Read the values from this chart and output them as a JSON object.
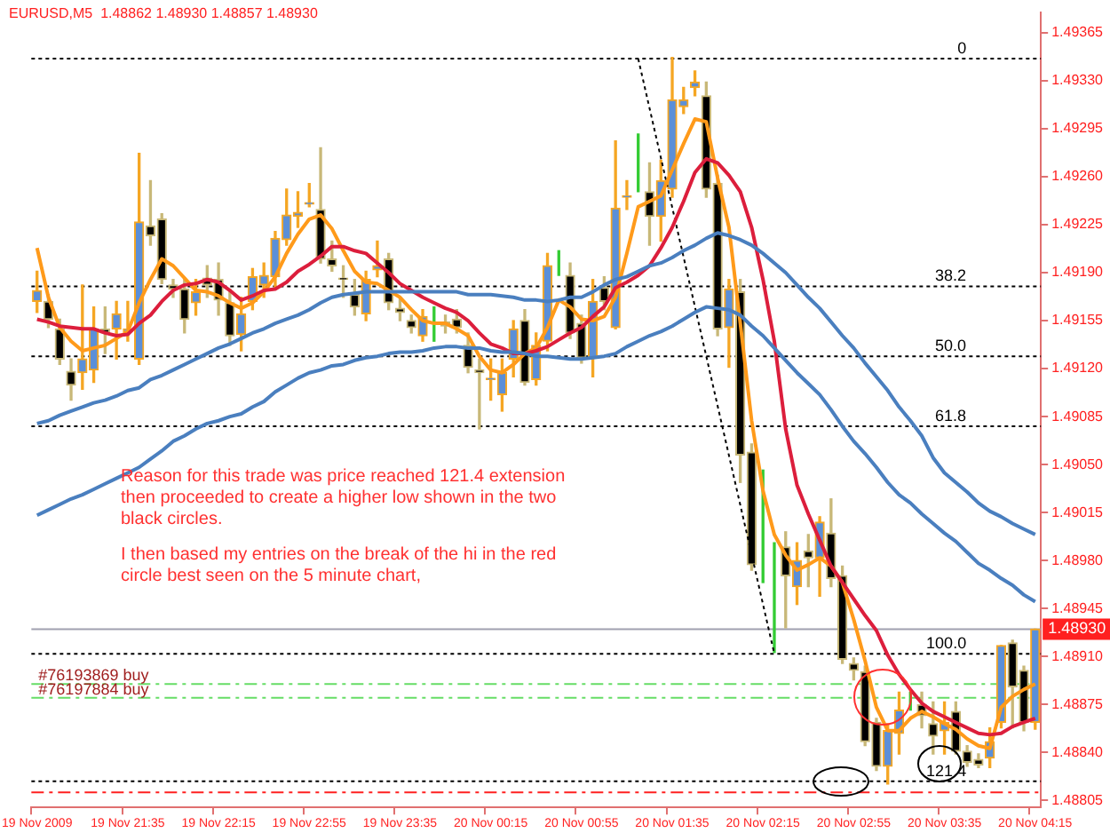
{
  "chart_data": {
    "type": "candlestick",
    "title": "EURUSD,M5  1.48862 1.48930 1.48857 1.48930",
    "categories": [
      "19 Nov 2009",
      null,
      null,
      null,
      null,
      null,
      null,
      null,
      "19 Nov 21:35",
      null,
      null,
      null,
      null,
      null,
      null,
      null,
      "19 Nov 22:15",
      null,
      null,
      null,
      null,
      null,
      null,
      null,
      "19 Nov 22:55",
      null,
      null,
      null,
      null,
      null,
      null,
      null,
      "19 Nov 23:35",
      null,
      null,
      null,
      null,
      null,
      null,
      null,
      "20 Nov 00:15",
      null,
      null,
      null,
      null,
      null,
      null,
      null,
      "20 Nov 00:55",
      null,
      null,
      null,
      null,
      null,
      null,
      null,
      "20 Nov 01:35",
      null,
      null,
      null,
      null,
      null,
      null,
      null,
      "20 Nov 02:15",
      null,
      null,
      null,
      null,
      null,
      null,
      null,
      "20 Nov 02:55",
      null,
      null,
      null,
      null,
      null,
      null,
      null,
      "20 Nov 03:35",
      null,
      null,
      null,
      null,
      null,
      null,
      null,
      "20 Nov 04:15"
    ],
    "ohlc": [
      [
        1.49169,
        1.49191,
        1.49161,
        1.49177
      ],
      [
        1.49169,
        1.49174,
        1.4915,
        1.49156
      ],
      [
        1.49149,
        1.49156,
        1.49123,
        1.49127
      ],
      [
        1.49118,
        1.49127,
        1.49097,
        1.49108
      ],
      [
        1.49117,
        1.49181,
        1.49105,
        1.49127
      ],
      [
        1.49119,
        1.49165,
        1.4911,
        1.49149
      ],
      [
        1.49149,
        1.49165,
        1.49131,
        1.49146
      ],
      [
        1.49149,
        1.49169,
        1.49127,
        1.4916
      ],
      [
        1.49147,
        1.49169,
        1.4914,
        1.49149
      ],
      [
        1.49127,
        1.49277,
        1.49123,
        1.49227
      ],
      [
        1.49224,
        1.49257,
        1.4921,
        1.49217
      ],
      [
        1.49229,
        1.49233,
        1.49182,
        1.49185
      ],
      [
        1.49181,
        1.49185,
        1.49172,
        1.49178
      ],
      [
        1.49178,
        1.49185,
        1.49146,
        1.49156
      ],
      [
        1.49168,
        1.49185,
        1.49159,
        1.49176
      ],
      [
        1.49186,
        1.49195,
        1.49172,
        1.49181
      ],
      [
        1.49185,
        1.49197,
        1.49159,
        1.4917
      ],
      [
        1.49168,
        1.49178,
        1.49137,
        1.49144
      ],
      [
        1.49145,
        1.49172,
        1.49133,
        1.4916
      ],
      [
        1.49169,
        1.49193,
        1.49163,
        1.49187
      ],
      [
        1.49181,
        1.49197,
        1.49172,
        1.49188
      ],
      [
        1.49187,
        1.4922,
        1.49178,
        1.49215
      ],
      [
        1.49214,
        1.49251,
        1.4921,
        1.49232
      ],
      [
        1.49231,
        1.49249,
        1.49223,
        1.49234
      ],
      [
        1.4924,
        1.49255,
        1.49238,
        1.49241
      ],
      [
        1.49236,
        1.49281,
        1.49197,
        1.492
      ],
      [
        1.492,
        1.49213,
        1.49191,
        1.49195
      ],
      [
        1.49186,
        1.49195,
        1.49172,
        1.49185
      ],
      [
        1.49174,
        1.49185,
        1.49159,
        1.49165
      ],
      [
        1.4916,
        1.49191,
        1.49155,
        1.49185
      ],
      [
        1.49192,
        1.49213,
        1.49187,
        1.49195
      ],
      [
        1.492,
        1.49204,
        1.49163,
        1.49168
      ],
      [
        1.49164,
        1.49172,
        1.49155,
        1.49161
      ],
      [
        1.49155,
        1.49159,
        1.49146,
        1.4915
      ],
      [
        1.49144,
        1.49163,
        1.4914,
        1.49158
      ],
      [
        1.49155,
        1.49165,
        1.4914,
        1.49155
      ],
      [
        1.49154,
        1.49159,
        1.49146,
        1.49151
      ],
      [
        1.49156,
        1.49163,
        1.49146,
        1.4915
      ],
      [
        1.49137,
        1.49146,
        1.49117,
        1.49121
      ],
      [
        1.49119,
        1.49127,
        1.49076,
        1.49117
      ],
      [
        1.49112,
        1.49127,
        1.49097,
        1.49113
      ],
      [
        1.49101,
        1.49127,
        1.49089,
        1.49117
      ],
      [
        1.49127,
        1.49155,
        1.49114,
        1.49149
      ],
      [
        1.49155,
        1.49163,
        1.49108,
        1.4911
      ],
      [
        1.49112,
        1.49146,
        1.49108,
        1.49137
      ],
      [
        1.4914,
        1.49204,
        1.49133,
        1.49195
      ],
      [
        1.49196,
        1.49206,
        1.49188,
        1.49196
      ],
      [
        1.49188,
        1.49197,
        1.49142,
        1.49146
      ],
      [
        1.49153,
        1.49159,
        1.49124,
        1.49128
      ],
      [
        1.49128,
        1.49185,
        1.49114,
        1.49169
      ],
      [
        1.49179,
        1.49187,
        1.49163,
        1.49169
      ],
      [
        1.4915,
        1.49286,
        1.49149,
        1.49237
      ],
      [
        1.49245,
        1.49257,
        1.49236,
        1.49246
      ],
      [
        1.49249,
        1.49291,
        1.49249,
        1.49249
      ],
      [
        1.49249,
        1.4927,
        1.4921,
        1.49231
      ],
      [
        1.49231,
        1.49272,
        1.49213,
        1.49257
      ],
      [
        1.49251,
        1.49347,
        1.49245,
        1.49316
      ],
      [
        1.49311,
        1.49325,
        1.49306,
        1.49316
      ],
      [
        1.49325,
        1.49337,
        1.49319,
        1.49329
      ],
      [
        1.49319,
        1.49329,
        1.49245,
        1.49251
      ],
      [
        1.49255,
        1.49261,
        1.49144,
        1.49149
      ],
      [
        1.4915,
        1.49185,
        1.49121,
        1.49178
      ],
      [
        1.49176,
        1.49185,
        1.49037,
        1.49057
      ],
      [
        1.49059,
        1.49065,
        1.48973,
        1.48977
      ],
      [
        1.48982,
        1.49046,
        1.48964,
        1.48982
      ],
      [
        1.4899,
        1.48993,
        1.48913,
        1.4899
      ],
      [
        1.4899,
        1.49001,
        1.48931,
        1.48969
      ],
      [
        1.48961,
        1.48993,
        1.48948,
        1.4898
      ],
      [
        1.48987,
        1.48999,
        1.48961,
        1.48982
      ],
      [
        1.48982,
        1.49012,
        1.48954,
        1.49008
      ],
      [
        1.49,
        1.49025,
        1.48961,
        1.48967
      ],
      [
        1.48969,
        1.48976,
        1.48905,
        1.48908
      ],
      [
        1.48905,
        1.48909,
        1.48893,
        1.489
      ],
      [
        1.48899,
        1.48903,
        1.48845,
        1.48848
      ],
      [
        1.48862,
        1.48865,
        1.48827,
        1.4883
      ],
      [
        1.4883,
        1.48861,
        1.48817,
        1.48856
      ],
      [
        1.48854,
        1.48884,
        1.48839,
        1.48871
      ],
      [
        1.48873,
        1.48884,
        1.48871,
        1.48873
      ],
      [
        1.48875,
        1.48884,
        1.48858,
        1.48867
      ],
      [
        1.48861,
        1.48877,
        1.48839,
        1.48852
      ],
      [
        1.48856,
        1.48877,
        1.48839,
        1.48862
      ],
      [
        1.4887,
        1.48877,
        1.48839,
        1.48841
      ],
      [
        1.48841,
        1.48845,
        1.4883,
        1.48833
      ],
      [
        1.48835,
        1.48839,
        1.48829,
        1.48831
      ],
      [
        1.48836,
        1.48858,
        1.48829,
        1.48848
      ],
      [
        1.48862,
        1.48918,
        1.48858,
        1.48918
      ],
      [
        1.4892,
        1.48922,
        1.48858,
        1.48888
      ],
      [
        1.489,
        1.48903,
        1.48856,
        1.48862
      ],
      [
        1.48862,
        1.4893,
        1.48857,
        1.4893
      ]
    ],
    "series": [
      {
        "type": "line",
        "color": "#4a7fbf",
        "values": [
          1.4908,
          1.49082,
          1.49086,
          1.49089,
          1.49092,
          1.49095,
          1.49097,
          1.491,
          1.49104,
          1.49106,
          1.49112,
          1.49115,
          1.49119,
          1.49123,
          1.49127,
          1.49131,
          1.49135,
          1.49138,
          1.49142,
          1.49146,
          1.49149,
          1.49153,
          1.49156,
          1.49159,
          1.49163,
          1.49168,
          1.49172,
          1.49174,
          1.49175,
          1.49176,
          1.49176,
          1.49176,
          1.49176,
          1.49176,
          1.49176,
          1.49176,
          1.49176,
          1.49176,
          1.49174,
          1.49174,
          1.49174,
          1.49173,
          1.49172,
          1.4917,
          1.4917,
          1.49169,
          1.4917,
          1.49172,
          1.49172,
          1.49176,
          1.49181,
          1.49185,
          1.49187,
          1.49191,
          1.49195,
          1.49197,
          1.49201,
          1.49206,
          1.4921,
          1.49215,
          1.49219,
          1.49217,
          1.49214,
          1.4921,
          1.49204,
          1.49197,
          1.4919,
          1.49181,
          1.49172,
          1.49164,
          1.49154,
          1.49144,
          1.49135,
          1.49124,
          1.49114,
          1.49104,
          1.49092,
          1.49082,
          1.49071,
          1.49055,
          1.49044,
          1.49037,
          1.4903,
          1.49022,
          1.49016,
          1.49012,
          1.49007,
          1.49003,
          1.48999
        ]
      },
      {
        "type": "line",
        "color": "#4a7fbf",
        "values": [
          1.49013,
          1.49017,
          1.49021,
          1.49025,
          1.49028,
          1.49032,
          1.49036,
          1.4904,
          1.49044,
          1.49048,
          1.49054,
          1.4906,
          1.49067,
          1.49071,
          1.49076,
          1.4908,
          1.49082,
          1.49085,
          1.49087,
          1.49092,
          1.49096,
          1.49103,
          1.49108,
          1.49113,
          1.49117,
          1.49119,
          1.49122,
          1.49123,
          1.49126,
          1.49128,
          1.49129,
          1.49131,
          1.49132,
          1.49132,
          1.49133,
          1.49135,
          1.49136,
          1.49136,
          1.49135,
          1.49135,
          1.49133,
          1.49132,
          1.49132,
          1.49131,
          1.49129,
          1.49129,
          1.49128,
          1.49127,
          1.49127,
          1.49128,
          1.49129,
          1.49131,
          1.49136,
          1.4914,
          1.49144,
          1.49147,
          1.49151,
          1.49156,
          1.49161,
          1.49165,
          1.49164,
          1.49163,
          1.49159,
          1.49151,
          1.49144,
          1.49135,
          1.49126,
          1.49117,
          1.49109,
          1.49101,
          1.4909,
          1.49078,
          1.49067,
          1.49058,
          1.49048,
          1.49037,
          1.49028,
          1.49022,
          1.49014,
          1.49007,
          1.49,
          1.48994,
          1.48986,
          1.48978,
          1.48973,
          1.48967,
          1.48962,
          1.48955,
          1.4895
        ]
      },
      {
        "type": "line",
        "color": "#dc1e3c",
        "values": [
          1.49156,
          1.49154,
          1.49151,
          1.4915,
          1.49149,
          1.49149,
          1.49146,
          1.49144,
          1.49145,
          1.49153,
          1.49159,
          1.49169,
          1.49177,
          1.49181,
          1.49182,
          1.49185,
          1.49183,
          1.49177,
          1.4917,
          1.49173,
          1.49177,
          1.49178,
          1.49183,
          1.49191,
          1.49196,
          1.49202,
          1.49209,
          1.49209,
          1.49206,
          1.49204,
          1.49197,
          1.4919,
          1.49182,
          1.49177,
          1.49172,
          1.49168,
          1.49164,
          1.49161,
          1.49155,
          1.49146,
          1.49138,
          1.49135,
          1.49131,
          1.49131,
          1.49133,
          1.49136,
          1.49141,
          1.49146,
          1.4915,
          1.49158,
          1.49165,
          1.49179,
          1.49183,
          1.49188,
          1.49195,
          1.49208,
          1.49223,
          1.49242,
          1.49263,
          1.49273,
          1.4927,
          1.49261,
          1.49249,
          1.49223,
          1.49185,
          1.4914,
          1.49076,
          1.49035,
          1.49014,
          1.48995,
          1.48976,
          1.48964,
          1.48952,
          1.4894,
          1.48929,
          1.48911,
          1.48897,
          1.48886,
          1.48876,
          1.4887,
          1.48866,
          1.48862,
          1.48858,
          1.48854,
          1.48853,
          1.48854,
          1.48859,
          1.48862,
          1.48865
        ]
      },
      {
        "type": "line",
        "color": "#ff9a1a",
        "values": [
          1.49208,
          1.49172,
          1.4915,
          1.4914,
          1.49133,
          1.49135,
          1.49137,
          1.49142,
          1.49147,
          1.49168,
          1.49185,
          1.492,
          1.49195,
          1.49186,
          1.49177,
          1.49176,
          1.49173,
          1.49168,
          1.49164,
          1.49168,
          1.49176,
          1.49187,
          1.49204,
          1.49218,
          1.49229,
          1.49232,
          1.49222,
          1.49206,
          1.49191,
          1.49183,
          1.49182,
          1.49177,
          1.49172,
          1.49163,
          1.49155,
          1.49153,
          1.49153,
          1.49149,
          1.49144,
          1.49129,
          1.49119,
          1.49117,
          1.49123,
          1.49131,
          1.49135,
          1.4915,
          1.4917,
          1.49165,
          1.49156,
          1.49155,
          1.49158,
          1.49172,
          1.49204,
          1.49238,
          1.49242,
          1.49246,
          1.49265,
          1.49284,
          1.49302,
          1.493,
          1.49259,
          1.49223,
          1.49153,
          1.49082,
          1.49031,
          1.48999,
          1.48984,
          1.48973,
          1.48977,
          1.48982,
          1.48976,
          1.48964,
          1.48937,
          1.48907,
          1.48873,
          1.48856,
          1.48856,
          1.48865,
          1.4887,
          1.48866,
          1.48861,
          1.48857,
          1.4885,
          1.48845,
          1.48843,
          1.48873,
          1.48881,
          1.48886,
          1.4889
        ]
      },
      {
        "type": "line",
        "color": "#000000",
        "line_style": "dotted",
        "values": [
          null,
          null,
          null,
          null,
          null,
          null,
          null,
          null,
          null,
          null,
          null,
          null,
          null,
          null,
          null,
          null,
          null,
          null,
          null,
          null,
          null,
          null,
          null,
          null,
          null,
          null,
          null,
          null,
          null,
          null,
          null,
          null,
          null,
          null,
          null,
          null,
          null,
          null,
          null,
          null,
          null,
          null,
          null,
          null,
          null,
          null,
          null,
          null,
          null,
          null,
          null,
          null,
          null,
          1.49346,
          null,
          null,
          null,
          null,
          null,
          null,
          null,
          null,
          null,
          null,
          null,
          1.48912,
          null,
          null,
          null,
          null,
          null,
          null,
          null,
          null,
          null,
          null,
          null,
          null,
          null,
          null,
          null,
          null,
          null,
          null,
          null,
          null,
          null,
          null,
          null
        ]
      }
    ],
    "ylim": [
      1.488,
      1.4938
    ],
    "yticks": [
      1.48805,
      {
        "value": 1.4884,
        "label": "1.48840"
      },
      1.48875,
      {
        "value": 1.4891,
        "label": "1.48910"
      },
      1.48945,
      {
        "value": 1.4898,
        "label": "1.48980"
      },
      1.49015,
      {
        "value": 1.4905,
        "label": "1.49050"
      },
      1.49085,
      {
        "value": 1.4912,
        "label": "1.49120"
      },
      1.49155,
      {
        "value": 1.4919,
        "label": "1.49190"
      },
      1.49225,
      {
        "value": 1.4926,
        "label": "1.49260"
      },
      1.49295,
      {
        "value": 1.4933,
        "label": "1.49330"
      },
      1.49365
    ],
    "ref_lines": [
      {
        "axis": "y",
        "value": 1.49346,
        "color": "#000000",
        "line_style": "dotted"
      },
      {
        "axis": "y",
        "value": 1.4918,
        "color": "#000000",
        "line_style": "dotted"
      },
      {
        "axis": "y",
        "value": 1.49129,
        "color": "#000000",
        "line_style": "dotted"
      },
      {
        "axis": "y",
        "value": 1.49078,
        "color": "#000000",
        "line_style": "dotted"
      },
      {
        "axis": "y",
        "value": 1.48912,
        "color": "#000000",
        "line_style": "dotted"
      },
      {
        "axis": "y",
        "value": 1.48819,
        "color": "#000000",
        "line_style": "dotted"
      },
      {
        "axis": "y",
        "value": 1.4893,
        "label": "1.48930",
        "color": "#a0a0b0",
        "line_style": "solid"
      },
      {
        "axis": "y",
        "value": 1.4889,
        "label": "#76193869 buy",
        "color": "#66dd66",
        "line_style": "dashed"
      },
      {
        "axis": "y",
        "value": 1.4888,
        "label": "#76197884 buy",
        "color": "#66dd66",
        "line_style": "dashed"
      },
      {
        "axis": "y",
        "value": 1.48811,
        "color": "#ff2020",
        "line_style": "dashed"
      }
    ],
    "annotations": [
      {
        "text": "0",
        "y": 1.49346
      },
      {
        "text": "38.2",
        "y": 1.4918
      },
      {
        "text": "50.0",
        "y": 1.49129
      },
      {
        "text": "61.8",
        "y": 1.49078
      },
      {
        "text": "100.0",
        "y": 1.48912
      },
      {
        "text": "121.4",
        "y": 1.48819
      },
      "Reason for this trade was price reached 121.4 extension then proceeded to create a higher low shown in the  two black circles.",
      "I then based my entries on the break of the hi in the red circle best seen on the 5 minute chart,"
    ]
  }
}
